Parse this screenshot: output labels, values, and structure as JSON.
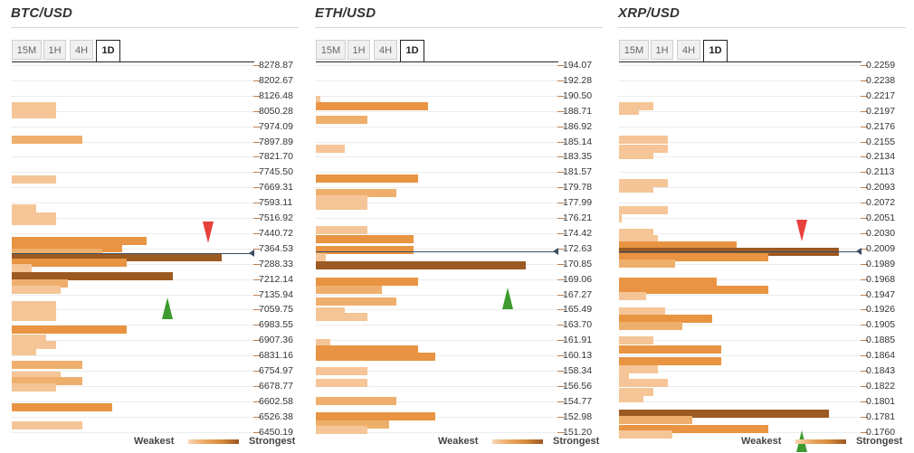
{
  "legend": {
    "weakest": "Weakest",
    "strongest": "Strongest"
  },
  "panels": [
    {
      "title": "BTC/USD",
      "tabs": [
        "15M",
        "1H",
        "4H",
        "1D"
      ],
      "active_tab": "1D",
      "price_levels": [
        "8278.87",
        "8202.67",
        "8126.48",
        "8050.28",
        "7974.09",
        "7897.89",
        "7821.70",
        "7745.50",
        "7669.31",
        "7593.11",
        "7516.92",
        "7440.72",
        "7364.53",
        "7288.33",
        "7212.14",
        "7135.94",
        "7059.75",
        "6983.55",
        "6907.36",
        "6831.16",
        "6754.97",
        "6678.77",
        "6602.58",
        "6526.38",
        "6450.19"
      ],
      "current_price_level": 12.3,
      "resistance_level": 11.9,
      "support_level": 15.3,
      "bars": [
        {
          "level": 2.7,
          "strength": 0.18,
          "tone": 1
        },
        {
          "level": 3.0,
          "strength": 0.18,
          "tone": 1
        },
        {
          "level": 3.2,
          "strength": 0.18,
          "tone": 1
        },
        {
          "level": 4.9,
          "strength": 0.29,
          "tone": 2
        },
        {
          "level": 7.5,
          "strength": 0.18,
          "tone": 1
        },
        {
          "level": 9.4,
          "strength": 0.1,
          "tone": 1
        },
        {
          "level": 9.7,
          "strength": 0.1,
          "tone": 1
        },
        {
          "level": 9.9,
          "strength": 0.18,
          "tone": 1
        },
        {
          "level": 10.2,
          "strength": 0.18,
          "tone": 1
        },
        {
          "level": 11.5,
          "strength": 0.55,
          "tone": 3
        },
        {
          "level": 12.0,
          "strength": 0.45,
          "tone": 3
        },
        {
          "level": 12.3,
          "strength": 0.37,
          "tone": 2
        },
        {
          "level": 12.6,
          "strength": 0.86,
          "tone": 4
        },
        {
          "level": 12.9,
          "strength": 0.47,
          "tone": 3
        },
        {
          "level": 13.3,
          "strength": 0.08,
          "tone": 1
        },
        {
          "level": 13.8,
          "strength": 0.66,
          "tone": 4
        },
        {
          "level": 14.3,
          "strength": 0.23,
          "tone": 2
        },
        {
          "level": 14.7,
          "strength": 0.2,
          "tone": 1
        },
        {
          "level": 15.7,
          "strength": 0.18,
          "tone": 1
        },
        {
          "level": 16.1,
          "strength": 0.18,
          "tone": 1
        },
        {
          "level": 16.5,
          "strength": 0.18,
          "tone": 1
        },
        {
          "level": 17.3,
          "strength": 0.47,
          "tone": 3
        },
        {
          "level": 17.9,
          "strength": 0.14,
          "tone": 1
        },
        {
          "level": 18.3,
          "strength": 0.18,
          "tone": 1
        },
        {
          "level": 18.7,
          "strength": 0.1,
          "tone": 1
        },
        {
          "level": 19.6,
          "strength": 0.29,
          "tone": 2
        },
        {
          "level": 20.3,
          "strength": 0.2,
          "tone": 1
        },
        {
          "level": 20.7,
          "strength": 0.29,
          "tone": 2
        },
        {
          "level": 21.1,
          "strength": 0.18,
          "tone": 1
        },
        {
          "level": 22.4,
          "strength": 0.41,
          "tone": 3
        },
        {
          "level": 23.6,
          "strength": 0.29,
          "tone": 1
        }
      ]
    },
    {
      "title": "ETH/USD",
      "tabs": [
        "15M",
        "1H",
        "4H",
        "1D"
      ],
      "active_tab": "1D",
      "price_levels": [
        "194.07",
        "192.28",
        "190.50",
        "188.71",
        "186.92",
        "185.14",
        "183.35",
        "181.57",
        "179.78",
        "177.99",
        "176.21",
        "174.42",
        "172.63",
        "170.85",
        "169.06",
        "167.27",
        "165.49",
        "163.70",
        "161.91",
        "160.13",
        "158.34",
        "156.56",
        "154.77",
        "152.98",
        "151.20"
      ],
      "current_price_level": 12.2,
      "resistance_level": null,
      "support_level": 14.7,
      "bars": [
        {
          "level": 2.3,
          "strength": 0.02,
          "tone": 1
        },
        {
          "level": 2.7,
          "strength": 0.46,
          "tone": 3
        },
        {
          "level": 3.6,
          "strength": 0.21,
          "tone": 2
        },
        {
          "level": 5.5,
          "strength": 0.12,
          "tone": 1
        },
        {
          "level": 7.4,
          "strength": 0.42,
          "tone": 3
        },
        {
          "level": 8.4,
          "strength": 0.33,
          "tone": 2
        },
        {
          "level": 8.8,
          "strength": 0.21,
          "tone": 1
        },
        {
          "level": 9.2,
          "strength": 0.21,
          "tone": 1
        },
        {
          "level": 10.8,
          "strength": 0.21,
          "tone": 1
        },
        {
          "level": 11.4,
          "strength": 0.4,
          "tone": 3
        },
        {
          "level": 12.1,
          "strength": 0.4,
          "tone": 3
        },
        {
          "level": 12.6,
          "strength": 0.04,
          "tone": 1
        },
        {
          "level": 13.1,
          "strength": 0.86,
          "tone": 4
        },
        {
          "level": 14.2,
          "strength": 0.42,
          "tone": 3
        },
        {
          "level": 14.7,
          "strength": 0.27,
          "tone": 2
        },
        {
          "level": 15.5,
          "strength": 0.33,
          "tone": 2
        },
        {
          "level": 16.1,
          "strength": 0.12,
          "tone": 1
        },
        {
          "level": 16.5,
          "strength": 0.21,
          "tone": 1
        },
        {
          "level": 18.2,
          "strength": 0.06,
          "tone": 1
        },
        {
          "level": 18.6,
          "strength": 0.42,
          "tone": 3
        },
        {
          "level": 19.1,
          "strength": 0.49,
          "tone": 3
        },
        {
          "level": 20.0,
          "strength": 0.21,
          "tone": 1
        },
        {
          "level": 20.8,
          "strength": 0.21,
          "tone": 1
        },
        {
          "level": 22.0,
          "strength": 0.33,
          "tone": 2
        },
        {
          "level": 23.0,
          "strength": 0.49,
          "tone": 3
        },
        {
          "level": 23.5,
          "strength": 0.3,
          "tone": 2
        },
        {
          "level": 23.9,
          "strength": 0.21,
          "tone": 1
        }
      ]
    },
    {
      "title": "XRP/USD",
      "tabs": [
        "15M",
        "1H",
        "4H",
        "1D"
      ],
      "active_tab": "1D",
      "price_levels": [
        "0.2259",
        "0.2238",
        "0.2217",
        "0.2197",
        "0.2176",
        "0.2155",
        "0.2134",
        "0.2113",
        "0.2093",
        "0.2072",
        "0.2051",
        "0.2030",
        "0.2009",
        "0.1989",
        "0.1968",
        "0.1947",
        "0.1926",
        "0.1905",
        "0.1885",
        "0.1864",
        "0.1843",
        "0.1822",
        "0.1801",
        "0.1781",
        "0.1760"
      ],
      "current_price_level": 12.2,
      "resistance_level": 11.8,
      "support_level": 24.0,
      "bars": [
        {
          "level": 2.7,
          "strength": 0.14,
          "tone": 1
        },
        {
          "level": 3.0,
          "strength": 0.08,
          "tone": 1
        },
        {
          "level": 4.9,
          "strength": 0.2,
          "tone": 1
        },
        {
          "level": 5.5,
          "strength": 0.2,
          "tone": 1
        },
        {
          "level": 5.9,
          "strength": 0.14,
          "tone": 1
        },
        {
          "level": 7.7,
          "strength": 0.2,
          "tone": 1
        },
        {
          "level": 8.1,
          "strength": 0.14,
          "tone": 1
        },
        {
          "level": 9.5,
          "strength": 0.2,
          "tone": 1
        },
        {
          "level": 10.0,
          "strength": 0.01,
          "tone": 1
        },
        {
          "level": 11.0,
          "strength": 0.14,
          "tone": 1
        },
        {
          "level": 11.4,
          "strength": 0.16,
          "tone": 1
        },
        {
          "level": 11.8,
          "strength": 0.48,
          "tone": 3
        },
        {
          "level": 12.2,
          "strength": 0.9,
          "tone": 4
        },
        {
          "level": 12.6,
          "strength": 0.61,
          "tone": 3
        },
        {
          "level": 13.0,
          "strength": 0.23,
          "tone": 2
        },
        {
          "level": 14.2,
          "strength": 0.4,
          "tone": 3
        },
        {
          "level": 14.7,
          "strength": 0.61,
          "tone": 3
        },
        {
          "level": 15.1,
          "strength": 0.11,
          "tone": 1
        },
        {
          "level": 16.1,
          "strength": 0.19,
          "tone": 1
        },
        {
          "level": 16.6,
          "strength": 0.38,
          "tone": 3
        },
        {
          "level": 17.1,
          "strength": 0.26,
          "tone": 2
        },
        {
          "level": 18.0,
          "strength": 0.14,
          "tone": 1
        },
        {
          "level": 18.6,
          "strength": 0.42,
          "tone": 3
        },
        {
          "level": 19.4,
          "strength": 0.42,
          "tone": 3
        },
        {
          "level": 19.9,
          "strength": 0.16,
          "tone": 1
        },
        {
          "level": 20.4,
          "strength": 0.04,
          "tone": 1
        },
        {
          "level": 20.8,
          "strength": 0.2,
          "tone": 1
        },
        {
          "level": 21.4,
          "strength": 0.14,
          "tone": 1
        },
        {
          "level": 21.8,
          "strength": 0.1,
          "tone": 1
        },
        {
          "level": 22.8,
          "strength": 0.86,
          "tone": 4
        },
        {
          "level": 23.2,
          "strength": 0.3,
          "tone": 2
        },
        {
          "level": 23.8,
          "strength": 0.61,
          "tone": 3
        },
        {
          "level": 24.2,
          "strength": 0.22,
          "tone": 1
        }
      ]
    }
  ],
  "colors": {
    "tone1": "#f5c597",
    "tone2": "#efaf6c",
    "tone3": "#e89442",
    "tone4": "#9c5a23",
    "price_line": "#3a4d63",
    "resistance_arrow": "#e8413c",
    "support_arrow": "#3d9a2f"
  }
}
